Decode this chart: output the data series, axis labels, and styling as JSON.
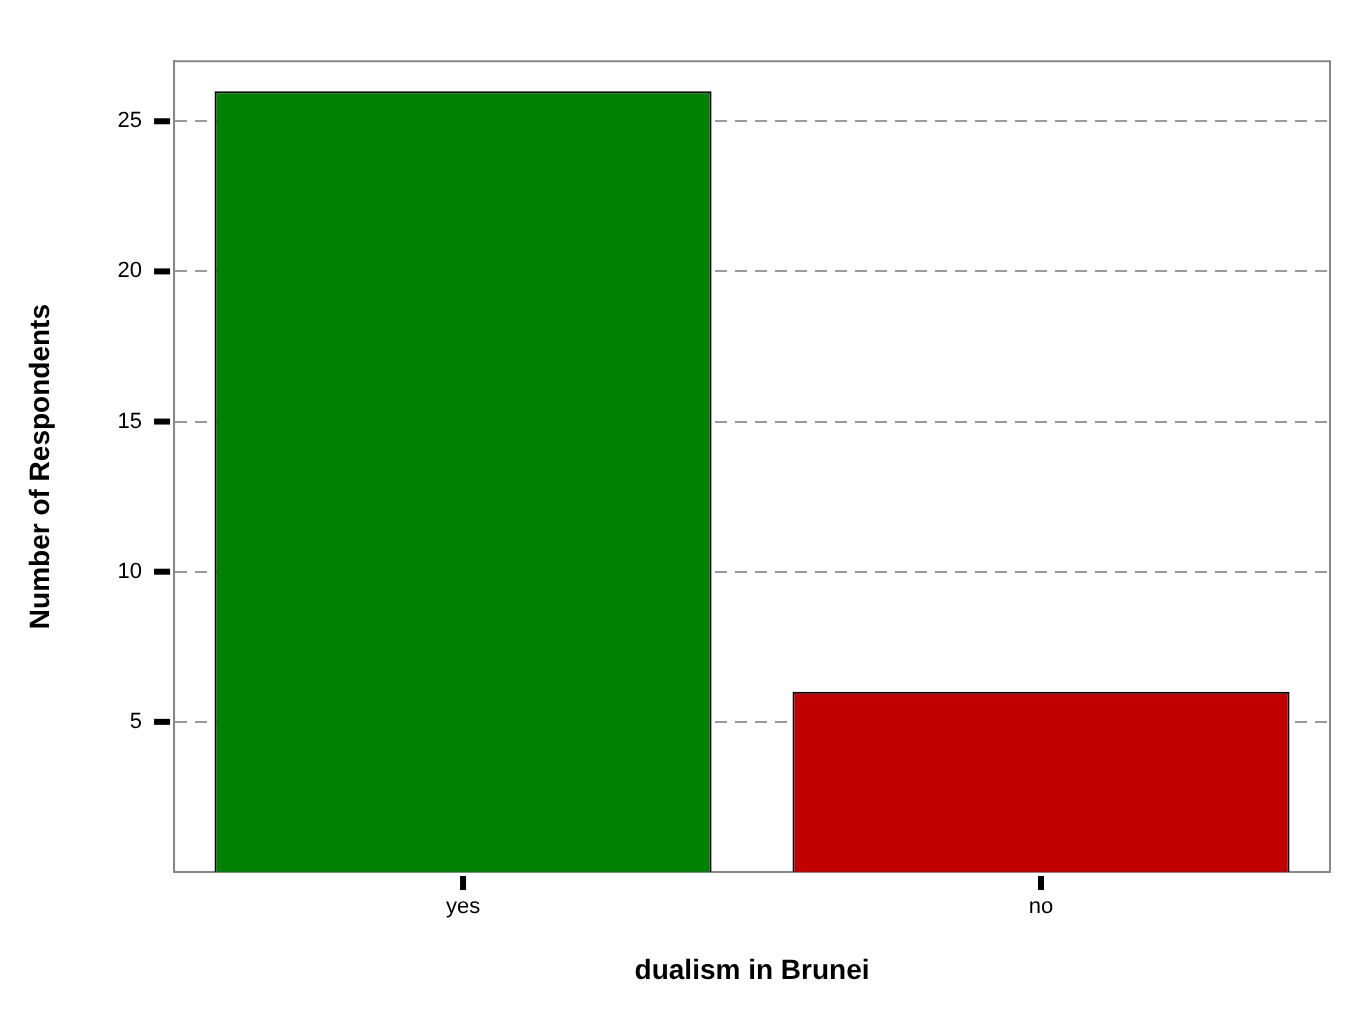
{
  "chart_data": {
    "type": "bar",
    "xlabel": "dualism in Brunei",
    "ylabel": "Number of Respondents",
    "categories": [
      "yes",
      "no"
    ],
    "values": [
      26,
      6
    ],
    "colors": [
      "#008000",
      "#c00000"
    ],
    "ylim": [
      0,
      27
    ],
    "yticks": [
      5,
      10,
      15,
      20,
      25
    ],
    "grid": "y",
    "legend": false
  }
}
